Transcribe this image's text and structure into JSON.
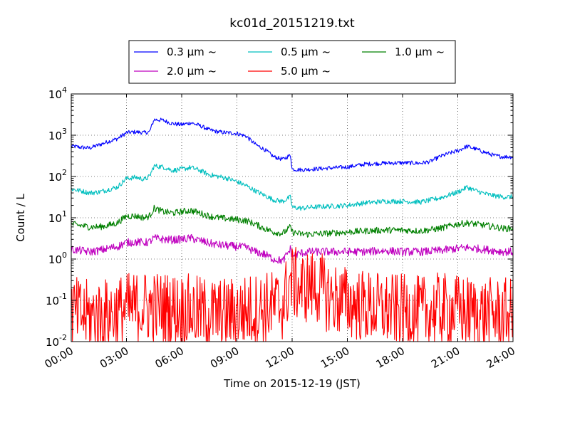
{
  "chart_data": {
    "type": "line",
    "title": "kc01d_20151219.txt",
    "xlabel": "Time on 2015-12-19 (JST)",
    "ylabel": "Count / L",
    "yscale": "log",
    "ylim": [
      0.01,
      10000
    ],
    "xlim": [
      "00:00",
      "24:00"
    ],
    "x_ticks": [
      "00:00",
      "03:00",
      "06:00",
      "09:00",
      "12:00",
      "15:00",
      "18:00",
      "21:00",
      "24:00"
    ],
    "y_ticks": [
      {
        "base": "10",
        "exp": "-2",
        "value": 0.01
      },
      {
        "base": "10",
        "exp": "-1",
        "value": 0.1
      },
      {
        "base": "10",
        "exp": "0",
        "value": 1
      },
      {
        "base": "10",
        "exp": "1",
        "value": 10
      },
      {
        "base": "10",
        "exp": "2",
        "value": 100
      },
      {
        "base": "10",
        "exp": "3",
        "value": 1000
      },
      {
        "base": "10",
        "exp": "4",
        "value": 10000
      }
    ],
    "grid": true,
    "grid_style": "dotted",
    "legend_position": "top-center",
    "legend_columns": 3,
    "series": [
      {
        "name": "0.3 μm ~",
        "color": "#0000ff",
        "noise": 0.05,
        "x": [
          "00:00",
          "00:30",
          "01:00",
          "01:30",
          "02:00",
          "02:30",
          "03:00",
          "03:30",
          "04:00",
          "04:15",
          "04:30",
          "05:00",
          "05:30",
          "06:00",
          "06:30",
          "07:00",
          "07:30",
          "08:00",
          "08:30",
          "09:00",
          "09:30",
          "10:00",
          "10:30",
          "11:00",
          "11:30",
          "11:55",
          "12:00",
          "12:30",
          "13:00",
          "13:30",
          "14:00",
          "15:00",
          "16:00",
          "17:00",
          "18:00",
          "19:00",
          "19:30",
          "20:00",
          "20:30",
          "21:00",
          "21:30",
          "22:00",
          "22:30",
          "23:00",
          "23:30",
          "24:00"
        ],
        "y": [
          550,
          510,
          490,
          580,
          700,
          820,
          1150,
          1200,
          1150,
          1200,
          2400,
          2300,
          1900,
          1800,
          2000,
          1700,
          1350,
          1200,
          1150,
          1100,
          950,
          600,
          450,
          300,
          260,
          330,
          150,
          145,
          150,
          155,
          160,
          170,
          200,
          210,
          215,
          210,
          230,
          300,
          360,
          420,
          540,
          460,
          380,
          320,
          300,
          300
        ]
      },
      {
        "name": "0.5 μm ~",
        "color": "#00bfbf",
        "noise": 0.06,
        "x": [
          "00:00",
          "00:30",
          "01:00",
          "01:30",
          "02:00",
          "02:30",
          "03:00",
          "03:30",
          "04:00",
          "04:15",
          "04:30",
          "05:00",
          "05:30",
          "06:00",
          "06:30",
          "07:00",
          "07:30",
          "08:00",
          "08:30",
          "09:00",
          "09:30",
          "10:00",
          "10:30",
          "11:00",
          "11:30",
          "11:55",
          "12:00",
          "12:30",
          "13:00",
          "14:00",
          "15:00",
          "16:00",
          "17:00",
          "18:00",
          "19:00",
          "20:00",
          "21:00",
          "21:30",
          "22:00",
          "22:30",
          "23:00",
          "23:30",
          "24:00"
        ],
        "y": [
          50,
          45,
          40,
          42,
          48,
          55,
          90,
          95,
          85,
          100,
          180,
          170,
          140,
          150,
          165,
          140,
          110,
          100,
          90,
          75,
          60,
          45,
          35,
          27,
          25,
          32,
          18,
          17,
          18,
          19,
          20,
          23,
          25,
          25,
          24,
          30,
          42,
          55,
          45,
          38,
          34,
          32,
          32
        ]
      },
      {
        "name": "1.0 μm ~",
        "color": "#008000",
        "noise": 0.08,
        "x": [
          "00:00",
          "00:30",
          "01:00",
          "01:30",
          "02:00",
          "02:30",
          "03:00",
          "03:30",
          "04:00",
          "04:15",
          "04:30",
          "05:00",
          "05:30",
          "06:00",
          "06:30",
          "07:00",
          "07:30",
          "08:00",
          "08:30",
          "09:00",
          "09:30",
          "10:00",
          "10:30",
          "11:00",
          "11:30",
          "11:55",
          "12:00",
          "12:30",
          "13:00",
          "14:00",
          "15:00",
          "16:00",
          "17:00",
          "18:00",
          "19:00",
          "20:00",
          "21:00",
          "21:30",
          "22:00",
          "22:30",
          "23:00",
          "23:30",
          "24:00"
        ],
        "y": [
          7,
          6.5,
          6,
          6,
          6.5,
          7.5,
          11,
          11,
          10,
          11,
          17,
          14,
          13,
          14,
          15,
          13,
          11,
          10,
          9.5,
          9,
          8.5,
          7,
          5.5,
          4.5,
          4.2,
          6,
          4.5,
          4,
          4,
          4.2,
          4.5,
          4.8,
          5,
          5,
          4.8,
          5.5,
          7,
          7.5,
          7,
          6.5,
          6,
          5.5,
          5.5
        ]
      },
      {
        "name": "2.0 μm ~",
        "color": "#bf00bf",
        "noise": 0.1,
        "x": [
          "00:00",
          "00:30",
          "01:00",
          "01:30",
          "02:00",
          "02:30",
          "03:00",
          "03:30",
          "04:00",
          "04:15",
          "04:30",
          "05:00",
          "05:30",
          "06:00",
          "06:30",
          "07:00",
          "07:30",
          "08:00",
          "08:30",
          "09:00",
          "09:30",
          "10:00",
          "10:30",
          "11:00",
          "11:30",
          "11:55",
          "12:00",
          "12:30",
          "13:00",
          "14:00",
          "15:00",
          "16:00",
          "17:00",
          "18:00",
          "19:00",
          "20:00",
          "21:00",
          "21:30",
          "22:00",
          "22:30",
          "23:00",
          "23:30",
          "24:00"
        ],
        "y": [
          1.7,
          1.6,
          1.5,
          1.6,
          1.8,
          2.0,
          2.5,
          2.6,
          2.5,
          2.6,
          3.2,
          3.0,
          2.9,
          3.0,
          3.2,
          2.8,
          2.4,
          2.2,
          2.1,
          2.0,
          1.9,
          1.5,
          1.3,
          1.0,
          0.9,
          1.8,
          1.2,
          1.4,
          1.5,
          1.5,
          1.5,
          1.5,
          1.6,
          1.5,
          1.5,
          1.6,
          1.8,
          1.9,
          1.8,
          1.7,
          1.6,
          1.5,
          1.5
        ]
      },
      {
        "name": "5.0 μm ~",
        "color": "#ff0000",
        "noise": 0.9,
        "x": [
          "00:00",
          "01:00",
          "02:00",
          "03:00",
          "04:00",
          "05:00",
          "06:00",
          "07:00",
          "08:00",
          "09:00",
          "10:00",
          "11:00",
          "11:30",
          "11:55",
          "12:30",
          "13:00",
          "13:30",
          "14:00",
          "15:00",
          "16:00",
          "17:00",
          "18:00",
          "19:00",
          "20:00",
          "21:00",
          "22:00",
          "23:00",
          "24:00"
        ],
        "y": [
          0.05,
          0.04,
          0.045,
          0.06,
          0.07,
          0.065,
          0.06,
          0.05,
          0.045,
          0.05,
          0.06,
          0.07,
          0.08,
          0.3,
          0.2,
          0.22,
          0.2,
          0.12,
          0.09,
          0.07,
          0.06,
          0.055,
          0.05,
          0.06,
          0.055,
          0.05,
          0.045,
          0.045
        ]
      }
    ]
  }
}
